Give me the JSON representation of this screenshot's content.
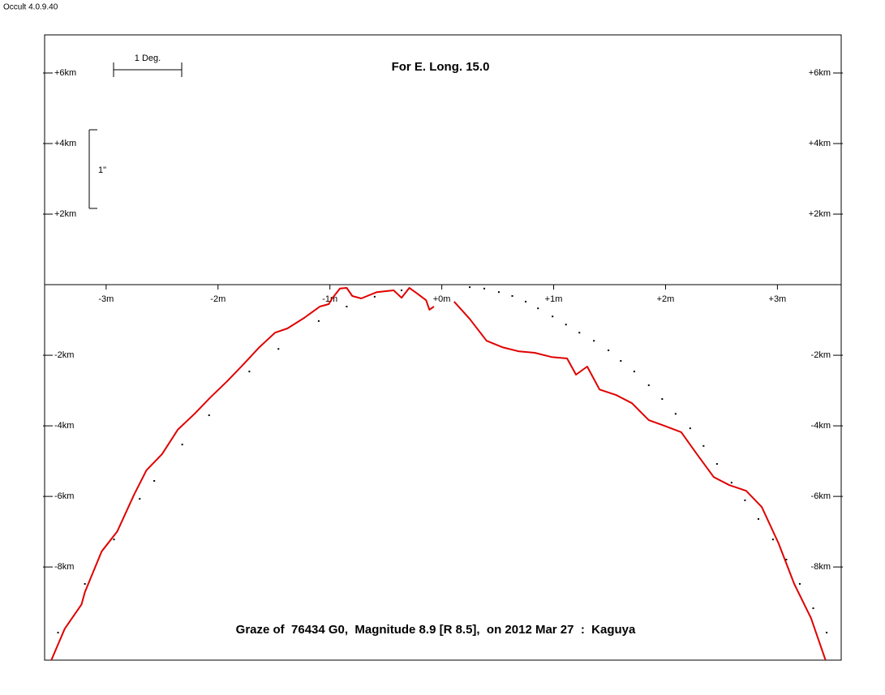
{
  "app_version": "Occult 4.0.9.40",
  "chart_data": {
    "type": "line",
    "title": "For E. Long. 15.0",
    "footer": "Graze of  76434 G0,  Magnitude 8.9 [R 8.5],  on 2012 Mar 27  :  Kaguya",
    "scale_bar_x_label": "1 Deg.",
    "scale_bar_y_label": "1\"",
    "xlim": [
      -3.55,
      3.57
    ],
    "ylim": [
      -10.64,
      7.08
    ],
    "xticks": [
      {
        "value": -3,
        "label": "-3m"
      },
      {
        "value": -2,
        "label": "-2m"
      },
      {
        "value": -1,
        "label": "-1m"
      },
      {
        "value": 0,
        "label": "+0m"
      },
      {
        "value": 1,
        "label": "+1m"
      },
      {
        "value": 2,
        "label": "+2m"
      },
      {
        "value": 3,
        "label": "+3m"
      }
    ],
    "yticks": [
      {
        "value": 6,
        "label": "+6km"
      },
      {
        "value": 4,
        "label": "+4km"
      },
      {
        "value": 2,
        "label": "+2km"
      },
      {
        "value": -2,
        "label": "-2km"
      },
      {
        "value": -4,
        "label": "-4km"
      },
      {
        "value": -6,
        "label": "-6km"
      },
      {
        "value": -8,
        "label": "-8km"
      }
    ],
    "series": [
      {
        "color": "#e00000",
        "style": "line",
        "x": [
          -3.49,
          -3.37,
          -3.22,
          -3.19,
          -3.04,
          -2.9,
          -2.75,
          -2.64,
          -2.5,
          -2.36,
          -2.21,
          -2.07,
          -1.92,
          -1.78,
          -1.63,
          -1.49,
          -1.38,
          -1.23,
          -1.09,
          -1.01,
          -0.98,
          -0.91,
          -0.85,
          -0.8,
          -0.72,
          -0.58,
          -0.43,
          -0.36,
          -0.29,
          -0.22,
          -0.14,
          -0.11,
          -0.07,
          0.0,
          0.11,
          0.25,
          0.4,
          0.54,
          0.69,
          0.83,
          0.98,
          1.12,
          1.2,
          1.3,
          1.41,
          1.56,
          1.7,
          1.85,
          1.99,
          2.14,
          2.28,
          2.43,
          2.57,
          2.72,
          2.86,
          3.01,
          3.15,
          3.3,
          3.43
        ],
        "values": [
          -10.64,
          -9.75,
          -9.06,
          -8.71,
          -7.56,
          -6.99,
          -5.95,
          -5.26,
          -4.8,
          -4.11,
          -3.66,
          -3.2,
          -2.74,
          -2.28,
          -1.77,
          -1.36,
          -1.24,
          -0.94,
          -0.62,
          -0.55,
          -0.39,
          -0.11,
          -0.09,
          -0.32,
          -0.39,
          -0.21,
          -0.16,
          -0.37,
          -0.09,
          -0.25,
          -0.44,
          -0.71,
          -0.62,
          null,
          -0.48,
          -0.97,
          -1.59,
          -1.77,
          -1.89,
          -1.93,
          -2.05,
          -2.09,
          -2.55,
          -2.32,
          -2.97,
          -3.13,
          -3.36,
          -3.84,
          -4.0,
          -4.18,
          -4.8,
          -5.45,
          -5.68,
          -5.84,
          -6.3,
          -7.33,
          -8.48,
          -9.45,
          -10.64
        ]
      },
      {
        "color": "#000000",
        "style": "dots",
        "x": [
          -3.43,
          -3.19,
          -2.93,
          -2.7,
          -2.57,
          -2.32,
          -2.08,
          -1.72,
          -1.46,
          -1.1,
          -0.85,
          -0.6,
          -0.36,
          0.25,
          0.38,
          0.51,
          0.63,
          0.75,
          0.86,
          0.99,
          1.11,
          1.23,
          1.36,
          1.49,
          1.6,
          1.72,
          1.85,
          1.97,
          2.09,
          2.22,
          2.34,
          2.46,
          2.59,
          2.71,
          2.83,
          2.96,
          3.08,
          3.2,
          3.32,
          3.44
        ],
        "values": [
          -9.86,
          -8.48,
          -7.22,
          -6.07,
          -5.56,
          -4.53,
          -3.7,
          -2.46,
          -1.82,
          -1.03,
          -0.62,
          -0.34,
          -0.16,
          -0.07,
          -0.11,
          -0.21,
          -0.32,
          -0.48,
          -0.67,
          -0.9,
          -1.13,
          -1.36,
          -1.59,
          -1.86,
          -2.16,
          -2.46,
          -2.85,
          -3.24,
          -3.66,
          -4.07,
          -4.57,
          -5.08,
          -5.61,
          -6.11,
          -6.64,
          -7.22,
          -7.79,
          -8.48,
          -9.17,
          -9.86
        ]
      }
    ]
  }
}
